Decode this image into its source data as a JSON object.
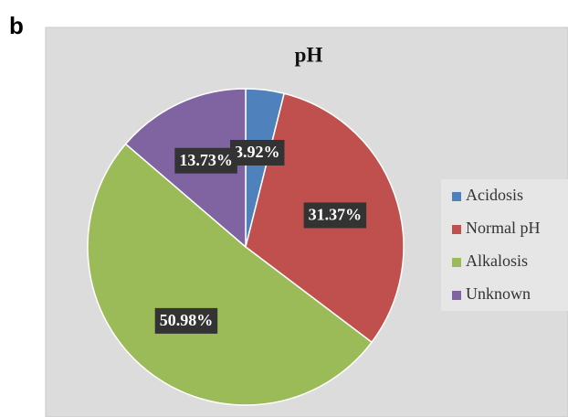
{
  "panel_label": "b",
  "chart_data": {
    "type": "pie",
    "title": "pH",
    "categories": [
      "Acidosis",
      "Normal pH",
      "Alkalosis",
      "Unknown"
    ],
    "values": [
      3.92,
      31.37,
      50.98,
      13.73
    ],
    "value_labels": [
      "3.92%",
      "31.37%",
      "50.98%",
      "13.73%"
    ],
    "colors": [
      "#4f81bd",
      "#c0504d",
      "#9bbb59",
      "#8064a2"
    ],
    "legend": "right"
  }
}
